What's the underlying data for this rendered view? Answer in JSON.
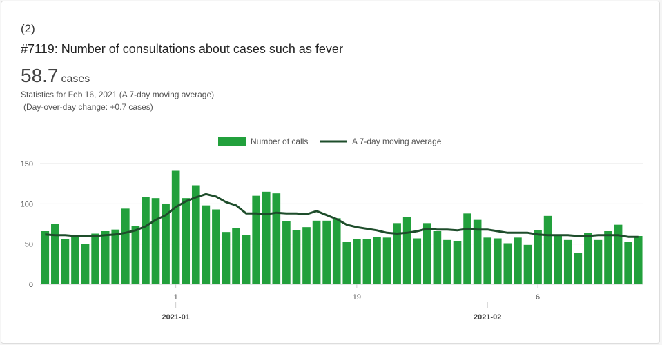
{
  "header": {
    "rank": "(2)",
    "title": "#7119: Number of consultations about cases such as fever",
    "value": "58.7",
    "unit": "cases",
    "stats_line1": "Statistics for Feb 16, 2021 (A 7-day moving average)",
    "stats_line2": "(Day-over-day change: +0.7 cases)"
  },
  "colors": {
    "bar": "#22a03c",
    "line": "#1e4d2b",
    "grid": "#e6e6e6",
    "axis": "#cccccc"
  },
  "chart_data": {
    "type": "bar",
    "ylim": [
      0,
      150
    ],
    "yticks": [
      0,
      50,
      100,
      150
    ],
    "xticks": [
      {
        "index": 13,
        "label": "1"
      },
      {
        "index": 31,
        "label": "19"
      },
      {
        "index": 49,
        "label": "6"
      }
    ],
    "month_labels": [
      {
        "index": 13,
        "label": "2021-01"
      },
      {
        "index": 44,
        "label": "2021-02"
      }
    ],
    "legend": [
      "Number of calls",
      "A 7-day moving average"
    ],
    "series": [
      {
        "name": "Number of calls",
        "type": "bar",
        "values": [
          66,
          75,
          56,
          60,
          50,
          63,
          66,
          68,
          94,
          72,
          108,
          107,
          100,
          141,
          107,
          123,
          98,
          93,
          65,
          70,
          61,
          110,
          115,
          113,
          78,
          67,
          71,
          79,
          79,
          82,
          53,
          56,
          56,
          59,
          58,
          76,
          84,
          57,
          76,
          66,
          55,
          54,
          88,
          80,
          58,
          57,
          51,
          58,
          49,
          67,
          85,
          61,
          55,
          39,
          64,
          55,
          66,
          74,
          53,
          60
        ]
      },
      {
        "name": "A 7-day moving average",
        "type": "line",
        "values": [
          62,
          61,
          61,
          60,
          60,
          60,
          61,
          62,
          64,
          67,
          72,
          80,
          86,
          96,
          103,
          108,
          112,
          109,
          102,
          98,
          88,
          88,
          87,
          89,
          88,
          88,
          87,
          91,
          86,
          81,
          74,
          71,
          69,
          67,
          64,
          63,
          64,
          66,
          69,
          68,
          68,
          67,
          69,
          68,
          68,
          66,
          64,
          64,
          64,
          62,
          61,
          61,
          61,
          60,
          60,
          61,
          61,
          61,
          59,
          59
        ]
      }
    ]
  }
}
